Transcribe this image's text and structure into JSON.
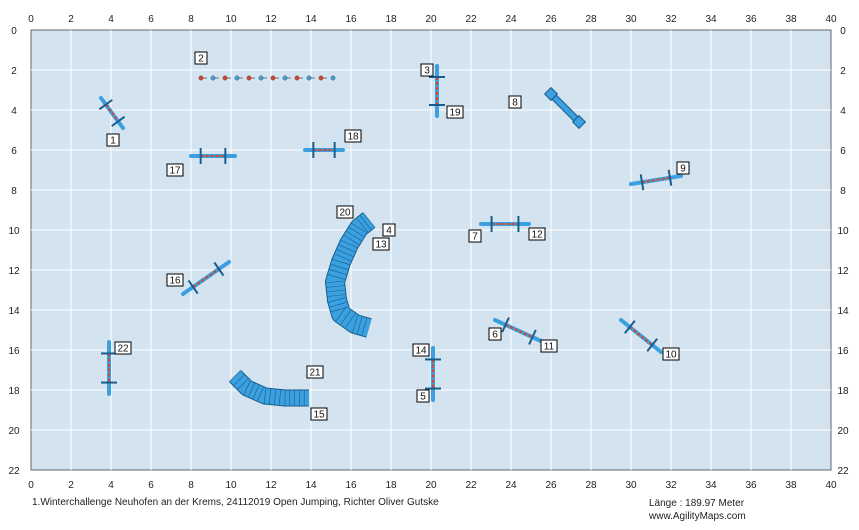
{
  "course": {
    "field_width_m": 40,
    "field_height_m": 22,
    "x_ticks": [
      0,
      2,
      4,
      6,
      8,
      10,
      12,
      14,
      16,
      18,
      20,
      22,
      24,
      26,
      28,
      30,
      32,
      34,
      36,
      38,
      40
    ],
    "y_ticks": [
      0,
      2,
      4,
      6,
      8,
      10,
      12,
      14,
      16,
      18,
      20,
      22
    ],
    "colors": {
      "field": "#d3e3f0",
      "grid": "#ffffff",
      "border": "#666666",
      "equipment": "#3aa0e0",
      "equipment_dark": "#1a5c8c",
      "bar": "#d8452a"
    },
    "obstacles": [
      {
        "type": "jump",
        "x1": 3.5,
        "y1": 3.4,
        "x2": 4.6,
        "y2": 4.9,
        "number": "1",
        "lx": 4.1,
        "ly": 5.5
      },
      {
        "type": "wall",
        "x1": 8.5,
        "y1": 2.4,
        "x2": 15.1,
        "y2": 2.4,
        "number": "2",
        "lx": 8.5,
        "ly": 1.4
      },
      {
        "type": "jump",
        "x1": 20.3,
        "y1": 1.8,
        "x2": 20.3,
        "y2": 4.3,
        "number": "3",
        "lx": 19.8,
        "ly": 2.0
      },
      {
        "type": "tunnel_straight",
        "x1": 26.0,
        "y1": 3.2,
        "x2": 27.4,
        "y2": 4.6,
        "number": "8",
        "lx": 24.2,
        "ly": 3.6
      },
      {
        "type": "jump",
        "x1": 8.0,
        "y1": 6.3,
        "x2": 10.2,
        "y2": 6.3,
        "number": "17",
        "lx": 7.2,
        "ly": 7.0
      },
      {
        "type": "jump",
        "x1": 13.7,
        "y1": 6.0,
        "x2": 15.6,
        "y2": 6.0,
        "number": "18",
        "lx": 16.1,
        "ly": 5.3
      },
      {
        "type": "jump",
        "x1": 30.0,
        "y1": 7.7,
        "x2": 32.5,
        "y2": 7.3,
        "number": "9",
        "lx": 32.6,
        "ly": 6.9
      },
      {
        "type": "jump",
        "x1": 22.5,
        "y1": 9.7,
        "x2": 24.9,
        "y2": 9.7,
        "number": "7",
        "lx": 22.2,
        "ly": 10.3
      },
      {
        "type": "jump",
        "x1": 7.6,
        "y1": 13.2,
        "x2": 9.9,
        "y2": 11.6,
        "number": "16",
        "lx": 7.2,
        "ly": 12.5
      },
      {
        "type": "jump",
        "x1": 23.2,
        "y1": 14.5,
        "x2": 25.6,
        "y2": 15.6,
        "number": "6",
        "lx": 23.2,
        "ly": 15.2
      },
      {
        "type": "jump",
        "x1": 29.5,
        "y1": 14.5,
        "x2": 31.5,
        "y2": 16.1,
        "number": "10",
        "lx": 32.0,
        "ly": 16.2
      },
      {
        "type": "jump",
        "x1": 3.9,
        "y1": 15.6,
        "x2": 3.9,
        "y2": 18.2,
        "number": "22",
        "lx": 4.6,
        "ly": 15.9
      },
      {
        "type": "jump",
        "x1": 20.1,
        "y1": 15.9,
        "x2": 20.1,
        "y2": 18.5,
        "number": "14",
        "lx": 19.5,
        "ly": 16.0
      },
      {
        "type": "tunnel_curve",
        "path": [
          [
            16.9,
            9.5
          ],
          [
            16.4,
            9.9
          ],
          [
            15.9,
            10.7
          ],
          [
            15.5,
            11.6
          ],
          [
            15.2,
            12.6
          ],
          [
            15.3,
            13.5
          ],
          [
            15.5,
            14.2
          ],
          [
            16.2,
            14.7
          ],
          [
            16.9,
            14.9
          ]
        ],
        "width": 0.9,
        "number": "20",
        "lx": 15.7,
        "ly": 9.1
      },
      {
        "type": "tunnel_curve",
        "path": [
          [
            10.2,
            17.3
          ],
          [
            10.8,
            17.9
          ],
          [
            11.7,
            18.3
          ],
          [
            12.7,
            18.4
          ],
          [
            13.9,
            18.4
          ]
        ],
        "width": 0.75,
        "number": "21",
        "lx": 14.2,
        "ly": 17.1
      },
      {
        "type": "label",
        "number": "4",
        "lx": 17.9,
        "ly": 10.0
      },
      {
        "type": "label",
        "number": "13",
        "lx": 17.5,
        "ly": 10.7
      },
      {
        "type": "label",
        "number": "19",
        "lx": 21.2,
        "ly": 4.1
      },
      {
        "type": "label",
        "number": "12",
        "lx": 25.3,
        "ly": 10.2
      },
      {
        "type": "label",
        "number": "11",
        "lx": 25.9,
        "ly": 15.8
      },
      {
        "type": "label",
        "number": "5",
        "lx": 19.6,
        "ly": 18.3
      },
      {
        "type": "label",
        "number": "15",
        "lx": 14.4,
        "ly": 19.2
      }
    ]
  },
  "footer": {
    "event_text": "1.Winterchallenge Neuhofen an der Krems, 24112019 Open Jumping, Richter Oliver Gutske",
    "length_text": "Länge : 189.97 Meter",
    "website": "www.AgilityMaps.com"
  }
}
